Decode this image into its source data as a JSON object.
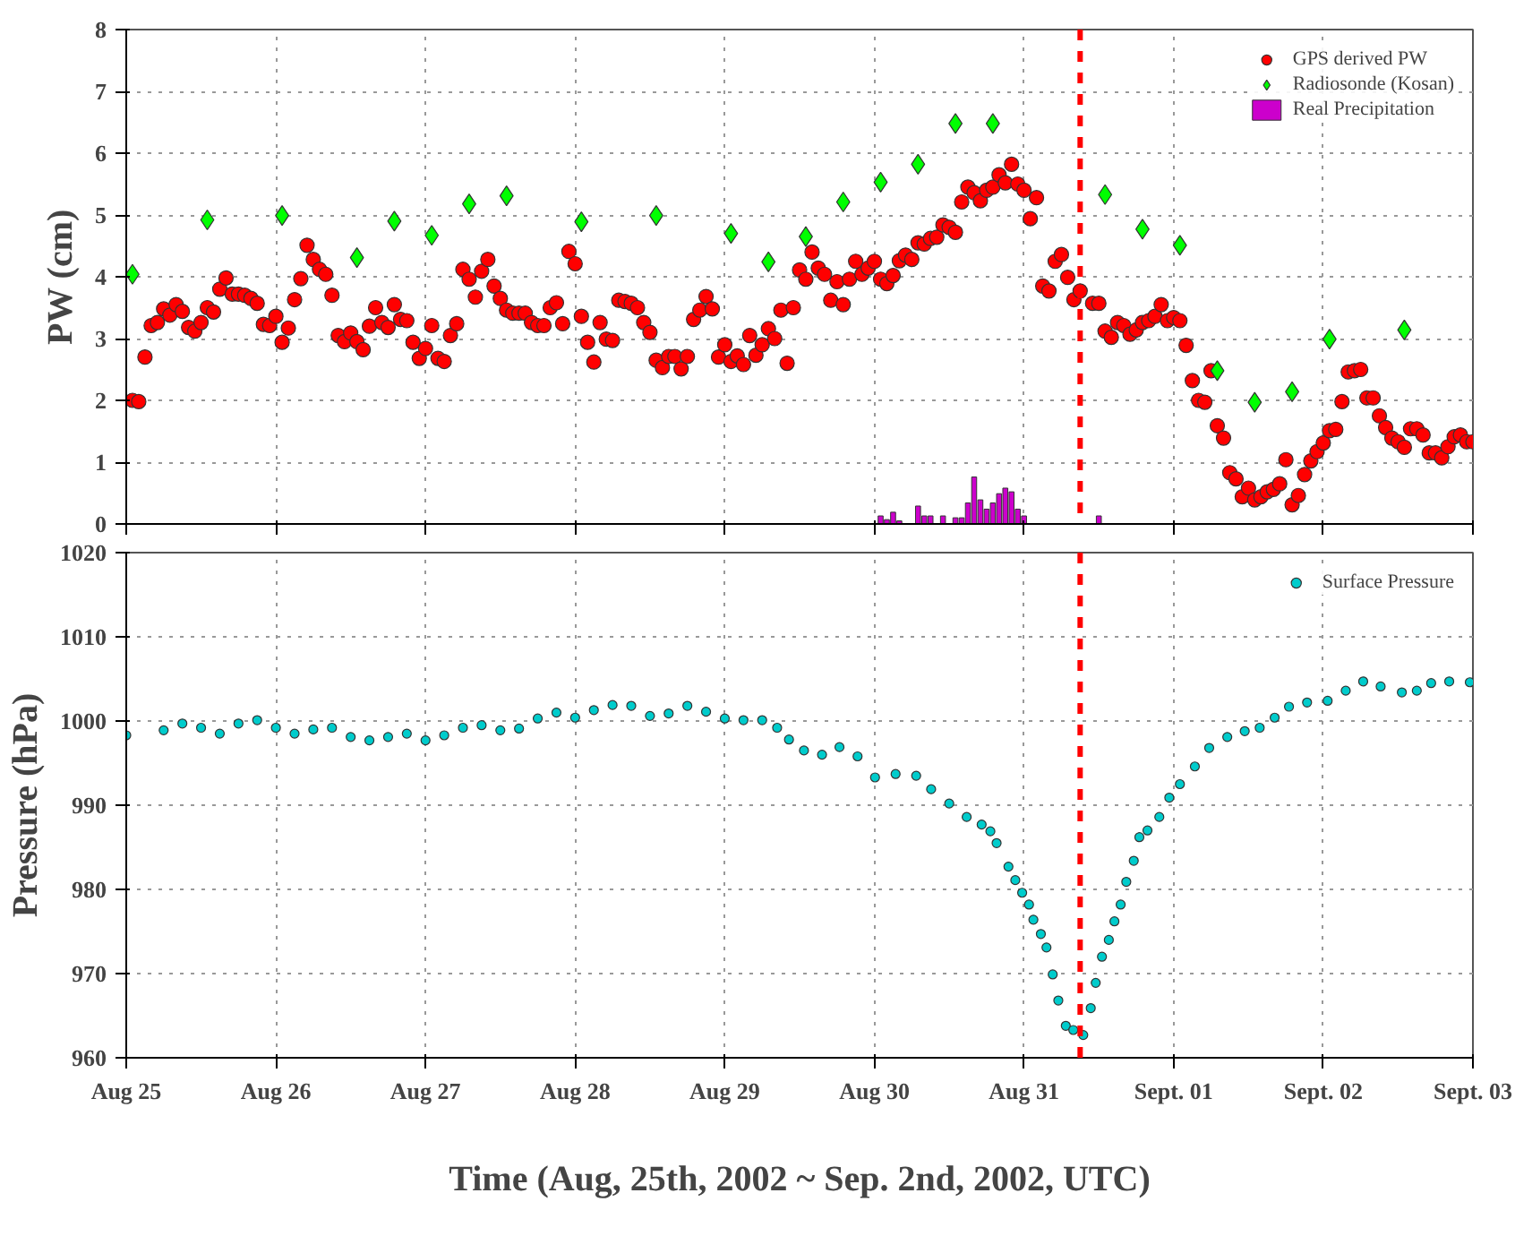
{
  "chart_data": [
    {
      "type": "scatter",
      "ylabel": "PW (cm)",
      "xlim": [
        "2002-08-25",
        "2002-09-03"
      ],
      "xticks": [
        "2002-08-25",
        "2002-08-26",
        "2002-08-27",
        "2002-08-28",
        "2002-08-29",
        "2002-08-30",
        "2002-08-31",
        "2002-09-01",
        "2002-09-02",
        "2002-09-03"
      ],
      "ylim": [
        0,
        8
      ],
      "yticks": [
        0,
        1,
        2,
        3,
        4,
        5,
        6,
        7,
        8
      ],
      "tick_labels": "y",
      "grid": true,
      "legend": "top right",
      "ref_lines": [
        {
          "axis": "x",
          "value": "2002-08-31T09:00",
          "color": "#ff0000",
          "line_style": "dashed"
        }
      ],
      "series": [
        {
          "name": "GPS derived PW",
          "color": "#ff0000",
          "marker": "circle",
          "x": [
            "2002-08-25T01:00",
            "2002-08-25T02:00",
            "2002-08-25T03:00",
            "2002-08-25T04:00",
            "2002-08-25T05:00",
            "2002-08-25T06:00",
            "2002-08-25T07:00",
            "2002-08-25T08:00",
            "2002-08-25T09:00",
            "2002-08-25T10:00",
            "2002-08-25T11:00",
            "2002-08-25T12:00",
            "2002-08-25T13:00",
            "2002-08-25T14:00",
            "2002-08-25T15:00",
            "2002-08-25T16:00",
            "2002-08-25T17:00",
            "2002-08-25T18:00",
            "2002-08-25T19:00",
            "2002-08-25T20:00",
            "2002-08-25T21:00",
            "2002-08-25T22:00",
            "2002-08-25T23:00",
            "2002-08-26T00:00",
            "2002-08-26T01:00",
            "2002-08-26T02:00",
            "2002-08-26T03:00",
            "2002-08-26T04:00",
            "2002-08-26T05:00",
            "2002-08-26T06:00",
            "2002-08-26T07:00",
            "2002-08-26T08:00",
            "2002-08-26T09:00",
            "2002-08-26T10:00",
            "2002-08-26T11:00",
            "2002-08-26T12:00",
            "2002-08-26T13:00",
            "2002-08-26T14:00",
            "2002-08-26T15:00",
            "2002-08-26T16:00",
            "2002-08-26T17:00",
            "2002-08-26T18:00",
            "2002-08-26T19:00",
            "2002-08-26T20:00",
            "2002-08-26T21:00",
            "2002-08-26T22:00",
            "2002-08-26T23:00",
            "2002-08-27T00:00",
            "2002-08-27T01:00",
            "2002-08-27T02:00",
            "2002-08-27T03:00",
            "2002-08-27T04:00",
            "2002-08-27T05:00",
            "2002-08-27T06:00",
            "2002-08-27T07:00",
            "2002-08-27T08:00",
            "2002-08-27T09:00",
            "2002-08-27T10:00",
            "2002-08-27T11:00",
            "2002-08-27T12:00",
            "2002-08-27T13:00",
            "2002-08-27T14:00",
            "2002-08-27T15:00",
            "2002-08-27T16:00",
            "2002-08-27T17:00",
            "2002-08-27T18:00",
            "2002-08-27T19:00",
            "2002-08-27T20:00",
            "2002-08-27T21:00",
            "2002-08-27T22:00",
            "2002-08-27T23:00",
            "2002-08-28T00:00",
            "2002-08-28T01:00",
            "2002-08-28T02:00",
            "2002-08-28T03:00",
            "2002-08-28T04:00",
            "2002-08-28T05:00",
            "2002-08-28T06:00",
            "2002-08-28T07:00",
            "2002-08-28T08:00",
            "2002-08-28T09:00",
            "2002-08-28T10:00",
            "2002-08-28T11:00",
            "2002-08-28T12:00",
            "2002-08-28T13:00",
            "2002-08-28T14:00",
            "2002-08-28T15:00",
            "2002-08-28T16:00",
            "2002-08-28T17:00",
            "2002-08-28T18:00",
            "2002-08-28T19:00",
            "2002-08-28T20:00",
            "2002-08-28T21:00",
            "2002-08-28T22:00",
            "2002-08-28T23:00",
            "2002-08-29T00:00",
            "2002-08-29T01:00",
            "2002-08-29T02:00",
            "2002-08-29T03:00",
            "2002-08-29T04:00",
            "2002-08-29T05:00",
            "2002-08-29T06:00",
            "2002-08-29T07:00",
            "2002-08-29T08:00",
            "2002-08-29T09:00",
            "2002-08-29T10:00",
            "2002-08-29T11:00",
            "2002-08-29T12:00",
            "2002-08-29T13:00",
            "2002-08-29T14:00",
            "2002-08-29T15:00",
            "2002-08-29T16:00",
            "2002-08-29T17:00",
            "2002-08-29T18:00",
            "2002-08-29T19:00",
            "2002-08-29T20:00",
            "2002-08-29T21:00",
            "2002-08-29T22:00",
            "2002-08-29T23:00",
            "2002-08-30T00:00",
            "2002-08-30T01:00",
            "2002-08-30T02:00",
            "2002-08-30T03:00",
            "2002-08-30T04:00",
            "2002-08-30T05:00",
            "2002-08-30T06:00",
            "2002-08-30T07:00",
            "2002-08-30T08:00",
            "2002-08-30T09:00",
            "2002-08-30T10:00",
            "2002-08-30T11:00",
            "2002-08-30T12:00",
            "2002-08-30T13:00",
            "2002-08-30T14:00",
            "2002-08-30T15:00",
            "2002-08-30T16:00",
            "2002-08-30T17:00",
            "2002-08-30T18:00",
            "2002-08-30T19:00",
            "2002-08-30T20:00",
            "2002-08-30T21:00",
            "2002-08-30T22:00",
            "2002-08-30T23:00",
            "2002-08-31T00:00",
            "2002-08-31T01:00",
            "2002-08-31T02:00",
            "2002-08-31T03:00",
            "2002-08-31T04:00",
            "2002-08-31T05:00",
            "2002-08-31T06:00",
            "2002-08-31T07:00",
            "2002-08-31T08:00",
            "2002-08-31T09:00",
            "2002-08-31T11:00",
            "2002-08-31T12:00",
            "2002-08-31T13:00",
            "2002-08-31T14:00",
            "2002-08-31T15:00",
            "2002-08-31T16:00",
            "2002-08-31T17:00",
            "2002-08-31T18:00",
            "2002-08-31T19:00",
            "2002-08-31T20:00",
            "2002-08-31T21:00",
            "2002-08-31T22:00",
            "2002-08-31T23:00",
            "2002-09-01T00:00",
            "2002-09-01T01:00",
            "2002-09-01T02:00",
            "2002-09-01T03:00",
            "2002-09-01T04:00",
            "2002-09-01T05:00",
            "2002-09-01T06:00",
            "2002-09-01T07:00",
            "2002-09-01T08:00",
            "2002-09-01T09:00",
            "2002-09-01T10:00",
            "2002-09-01T11:00",
            "2002-09-01T12:00",
            "2002-09-01T13:00",
            "2002-09-01T14:00",
            "2002-09-01T15:00",
            "2002-09-01T16:00",
            "2002-09-01T17:00",
            "2002-09-01T18:00",
            "2002-09-01T19:00",
            "2002-09-01T20:00",
            "2002-09-01T21:00",
            "2002-09-01T22:00",
            "2002-09-01T23:00",
            "2002-09-02T00:00",
            "2002-09-02T01:00",
            "2002-09-02T02:00",
            "2002-09-02T03:00",
            "2002-09-02T04:00",
            "2002-09-02T05:00",
            "2002-09-02T06:00",
            "2002-09-02T07:00",
            "2002-09-02T08:00",
            "2002-09-02T09:00",
            "2002-09-02T10:00",
            "2002-09-02T11:00",
            "2002-09-02T12:00",
            "2002-09-02T13:00",
            "2002-09-02T14:00",
            "2002-09-02T15:00",
            "2002-09-02T16:00",
            "2002-09-02T17:00",
            "2002-09-02T18:00",
            "2002-09-02T19:00",
            "2002-09-02T20:00",
            "2002-09-02T21:00",
            "2002-09-02T22:00",
            "2002-09-02T23:00",
            "2002-09-03T00:00"
          ],
          "values": [
            2.0,
            1.98,
            2.7,
            3.21,
            3.26,
            3.48,
            3.38,
            3.55,
            3.44,
            3.18,
            3.12,
            3.26,
            3.5,
            3.43,
            3.8,
            3.98,
            3.72,
            3.72,
            3.7,
            3.65,
            3.57,
            3.23,
            3.21,
            3.36,
            2.94,
            3.17,
            3.63,
            3.97,
            4.51,
            4.28,
            4.12,
            4.04,
            3.7,
            3.05,
            2.95,
            3.09,
            2.95,
            2.82,
            3.2,
            3.5,
            3.26,
            3.18,
            3.55,
            3.31,
            3.29,
            2.94,
            2.68,
            2.84,
            3.21,
            2.68,
            2.63,
            3.05,
            3.24,
            4.12,
            3.96,
            3.67,
            4.09,
            4.28,
            3.85,
            3.65,
            3.46,
            3.41,
            3.41,
            3.41,
            3.26,
            3.21,
            3.21,
            3.5,
            3.58,
            3.24,
            4.41,
            4.21,
            3.36,
            2.94,
            2.62,
            3.26,
            2.99,
            2.97,
            3.62,
            3.6,
            3.57,
            3.5,
            3.26,
            3.1,
            2.65,
            2.53,
            2.71,
            2.71,
            2.51,
            2.71,
            3.31,
            3.46,
            3.68,
            3.48,
            2.7,
            2.9,
            2.63,
            2.72,
            2.58,
            3.05,
            2.73,
            2.9,
            3.16,
            3.0,
            3.46,
            2.6,
            3.5,
            4.11,
            3.96,
            4.4,
            4.14,
            4.04,
            3.62,
            3.92,
            3.55,
            3.96,
            4.25,
            4.04,
            4.14,
            4.25,
            3.96,
            3.89,
            4.02,
            4.26,
            4.35,
            4.28,
            4.55,
            4.53,
            4.62,
            4.64,
            4.84,
            4.8,
            4.72,
            5.21,
            5.45,
            5.36,
            5.23,
            5.4,
            5.45,
            5.65,
            5.52,
            5.82,
            5.5,
            5.4,
            4.94,
            5.28,
            3.85,
            3.77,
            4.25,
            4.36,
            3.99,
            3.63,
            3.77,
            3.57,
            3.57,
            3.12,
            3.02,
            3.26,
            3.21,
            3.07,
            3.14,
            3.26,
            3.29,
            3.36,
            3.55,
            3.29,
            3.34,
            3.29,
            2.89,
            2.32,
            2.0,
            1.97,
            2.48,
            1.59,
            1.39,
            0.83,
            0.73,
            0.44,
            0.58,
            0.39,
            0.44,
            0.52,
            0.56,
            0.65,
            1.04,
            0.31,
            0.46,
            0.8,
            1.02,
            1.17,
            1.31,
            1.51,
            1.53,
            1.98,
            2.46,
            2.48,
            2.5,
            2.04,
            2.04,
            1.75,
            1.56,
            1.39,
            1.33,
            1.24,
            1.54,
            1.54,
            1.44,
            1.15,
            1.15,
            1.07,
            1.25,
            1.41,
            1.44,
            1.33,
            1.33
          ]
        },
        {
          "name": "Radiosonde (Kosan)",
          "color": "#00ff00",
          "marker": "diamond",
          "x": [
            "2002-08-25T01:00",
            "2002-08-25T13:00",
            "2002-08-26T01:00",
            "2002-08-26T13:00",
            "2002-08-26T19:00",
            "2002-08-27T01:00",
            "2002-08-27T07:00",
            "2002-08-27T13:00",
            "2002-08-28T01:00",
            "2002-08-28T13:00",
            "2002-08-29T01:00",
            "2002-08-29T07:00",
            "2002-08-29T13:00",
            "2002-08-29T19:00",
            "2002-08-30T01:00",
            "2002-08-30T07:00",
            "2002-08-30T13:00",
            "2002-08-30T19:00",
            "2002-08-31T13:00",
            "2002-08-31T19:00",
            "2002-09-01T01:00",
            "2002-09-01T07:00",
            "2002-09-01T13:00",
            "2002-09-01T19:00",
            "2002-09-02T01:00",
            "2002-09-02T13:00"
          ],
          "values": [
            4.04,
            4.92,
            4.99,
            4.31,
            4.9,
            4.67,
            5.18,
            5.31,
            4.89,
            4.99,
            4.7,
            4.24,
            4.65,
            5.21,
            5.53,
            5.82,
            6.48,
            6.48,
            5.33,
            4.77,
            4.51,
            2.48,
            1.97,
            2.14,
            2.99,
            3.14
          ]
        },
        {
          "name": "Real Precipitation",
          "type": "bar",
          "color": "#cc00cc",
          "x": [
            "2002-08-30T01:00",
            "2002-08-30T02:00",
            "2002-08-30T03:00",
            "2002-08-30T04:00",
            "2002-08-30T07:00",
            "2002-08-30T08:00",
            "2002-08-30T09:00",
            "2002-08-30T11:00",
            "2002-08-30T13:00",
            "2002-08-30T14:00",
            "2002-08-30T15:00",
            "2002-08-30T16:00",
            "2002-08-30T17:00",
            "2002-08-30T18:00",
            "2002-08-30T19:00",
            "2002-08-30T20:00",
            "2002-08-30T21:00",
            "2002-08-30T22:00",
            "2002-08-30T23:00",
            "2002-08-31T00:00",
            "2002-08-31T12:00"
          ],
          "values": [
            0.13,
            0.07,
            0.19,
            0.05,
            0.29,
            0.13,
            0.13,
            0.13,
            0.1,
            0.1,
            0.34,
            0.76,
            0.39,
            0.24,
            0.34,
            0.49,
            0.58,
            0.52,
            0.24,
            0.13,
            0.13
          ]
        }
      ]
    },
    {
      "type": "scatter",
      "ylabel": "Pressure (hPa)",
      "xlabel": "Time (Aug, 25th, 2002 ~ Sep. 2nd, 2002, UTC)",
      "xlim": [
        "2002-08-25",
        "2002-09-03"
      ],
      "xticks": [
        {
          "value": "2002-08-25",
          "label": "Aug 25"
        },
        {
          "value": "2002-08-26",
          "label": "Aug 26"
        },
        {
          "value": "2002-08-27",
          "label": "Aug 27"
        },
        {
          "value": "2002-08-28",
          "label": "Aug 28"
        },
        {
          "value": "2002-08-29",
          "label": "Aug 29"
        },
        {
          "value": "2002-08-30",
          "label": "Aug 30"
        },
        {
          "value": "2002-08-31",
          "label": "Aug 31"
        },
        {
          "value": "2002-09-01",
          "label": "Sept. 01"
        },
        {
          "value": "2002-09-02",
          "label": "Sept. 02"
        },
        {
          "value": "2002-09-03",
          "label": "Sept. 03"
        }
      ],
      "ylim": [
        960,
        1020
      ],
      "yticks": [
        960,
        970,
        980,
        990,
        1000,
        1010,
        1020
      ],
      "grid": true,
      "legend": "top right",
      "ref_lines": [
        {
          "axis": "x",
          "value": "2002-08-31T09:00",
          "color": "#ff0000",
          "line_style": "dashed"
        }
      ],
      "series": [
        {
          "name": "Surface Pressure",
          "color": "#00cccc",
          "marker": "circle",
          "x": [
            "2002-08-25T00:00",
            "2002-08-25T06:00",
            "2002-08-25T09:00",
            "2002-08-25T12:00",
            "2002-08-25T15:00",
            "2002-08-25T18:00",
            "2002-08-25T21:00",
            "2002-08-26T00:00",
            "2002-08-26T03:00",
            "2002-08-26T06:00",
            "2002-08-26T09:00",
            "2002-08-26T12:00",
            "2002-08-26T15:00",
            "2002-08-26T18:00",
            "2002-08-26T21:00",
            "2002-08-27T00:00",
            "2002-08-27T03:00",
            "2002-08-27T06:00",
            "2002-08-27T09:00",
            "2002-08-27T12:00",
            "2002-08-27T15:00",
            "2002-08-27T18:00",
            "2002-08-27T21:00",
            "2002-08-28T00:00",
            "2002-08-28T03:00",
            "2002-08-28T06:00",
            "2002-08-28T09:00",
            "2002-08-28T12:00",
            "2002-08-28T15:00",
            "2002-08-28T18:00",
            "2002-08-28T21:00",
            "2002-08-29T00:00",
            "2002-08-29T03:00",
            "2002-08-29T06:00",
            "2002-08-29T08:24",
            "2002-08-29T10:18",
            "2002-08-29T12:42",
            "2002-08-29T15:36",
            "2002-08-29T18:24",
            "2002-08-29T21:18",
            "2002-08-30T00:06",
            "2002-08-30T03:24",
            "2002-08-30T06:42",
            "2002-08-30T09:06",
            "2002-08-30T12:00",
            "2002-08-30T14:48",
            "2002-08-30T17:12",
            "2002-08-30T18:36",
            "2002-08-30T19:36",
            "2002-08-30T21:30",
            "2002-08-30T22:36",
            "2002-08-30T23:42",
            "2002-08-31T00:48",
            "2002-08-31T01:30",
            "2002-08-31T02:42",
            "2002-08-31T03:36",
            "2002-08-31T04:36",
            "2002-08-31T05:30",
            "2002-08-31T06:42",
            "2002-08-31T07:54",
            "2002-08-31T09:30",
            "2002-08-31T10:42",
            "2002-08-31T11:30",
            "2002-08-31T12:30",
            "2002-08-31T13:36",
            "2002-08-31T14:30",
            "2002-08-31T15:30",
            "2002-08-31T16:24",
            "2002-08-31T17:36",
            "2002-08-31T18:30",
            "2002-08-31T19:48",
            "2002-08-31T21:42",
            "2002-08-31T23:18",
            "2002-09-01T01:00",
            "2002-09-01T03:24",
            "2002-09-01T05:42",
            "2002-09-01T08:36",
            "2002-09-01T11:24",
            "2002-09-01T13:48",
            "2002-09-01T16:12",
            "2002-09-01T18:30",
            "2002-09-01T21:24",
            "2002-09-02T00:42",
            "2002-09-02T03:36",
            "2002-09-02T06:24",
            "2002-09-02T09:12",
            "2002-09-02T12:36",
            "2002-09-02T15:00",
            "2002-09-02T17:18",
            "2002-09-02T20:12",
            "2002-09-02T23:30"
          ],
          "values": [
            998.3,
            998.9,
            999.7,
            999.2,
            998.5,
            999.7,
            1000.1,
            999.2,
            998.5,
            999.0,
            999.2,
            998.1,
            997.7,
            998.1,
            998.5,
            997.7,
            998.3,
            999.2,
            999.5,
            998.9,
            999.1,
            1000.3,
            1001.0,
            1000.4,
            1001.3,
            1001.9,
            1001.8,
            1000.6,
            1000.9,
            1001.8,
            1001.1,
            1000.3,
            1000.1,
            1000.1,
            999.2,
            997.8,
            996.5,
            996.0,
            996.9,
            995.8,
            993.3,
            993.7,
            993.5,
            991.9,
            990.2,
            988.6,
            987.7,
            986.9,
            985.5,
            982.7,
            981.1,
            979.6,
            978.2,
            976.4,
            974.7,
            973.1,
            969.9,
            966.8,
            963.8,
            963.3,
            962.7,
            965.9,
            968.9,
            972.0,
            974.0,
            976.2,
            978.2,
            980.9,
            983.4,
            986.2,
            987.0,
            988.6,
            990.9,
            992.5,
            994.6,
            996.8,
            998.1,
            998.8,
            999.2,
            1000.4,
            1001.7,
            1002.2,
            1002.4,
            1003.6,
            1004.7,
            1004.1,
            1003.4,
            1003.6,
            1004.5,
            1004.7,
            1004.6
          ]
        }
      ]
    }
  ]
}
